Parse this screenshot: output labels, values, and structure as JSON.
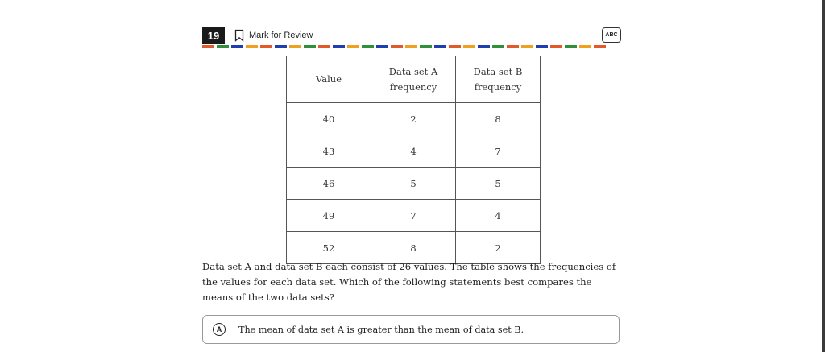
{
  "header": {
    "question_number": "19",
    "mark_for_review": "Mark for Review",
    "abc_tool": "ABC"
  },
  "colors": {
    "dash_colors": [
      "#e05a2b",
      "#2f8f3a",
      "#1f3fae",
      "#f0a020",
      "#e05a2b",
      "#1f3fae",
      "#f0a020",
      "#2f8f3a",
      "#e05a2b",
      "#1f3fae",
      "#f0a020",
      "#2f8f3a",
      "#1f3fae",
      "#e05a2b",
      "#f0a020",
      "#2f8f3a",
      "#1f3fae",
      "#e05a2b",
      "#f0a020",
      "#1f3fae",
      "#2f8f3a",
      "#e05a2b",
      "#f0a020",
      "#1f3fae",
      "#e05a2b",
      "#2f8f3a",
      "#f0a020",
      "#e05a2b"
    ]
  },
  "table": {
    "headers": {
      "value": "Value",
      "a_line1": "Data set A",
      "a_line2": "frequency",
      "b_line1": "Data set B",
      "b_line2": "frequency"
    },
    "rows": [
      {
        "value": "40",
        "a": "2",
        "b": "8"
      },
      {
        "value": "43",
        "a": "4",
        "b": "7"
      },
      {
        "value": "46",
        "a": "5",
        "b": "5"
      },
      {
        "value": "49",
        "a": "7",
        "b": "4"
      },
      {
        "value": "52",
        "a": "8",
        "b": "2"
      }
    ]
  },
  "question": {
    "before": "Data set A and data set B each consist of ",
    "count": "26",
    "after": " values. The table shows the frequencies of the values for each data set. Which of the following statements best compares the means of the two data sets?"
  },
  "choices": [
    {
      "letter": "A",
      "text": "The mean of data set A is greater than the mean of data set B."
    }
  ]
}
